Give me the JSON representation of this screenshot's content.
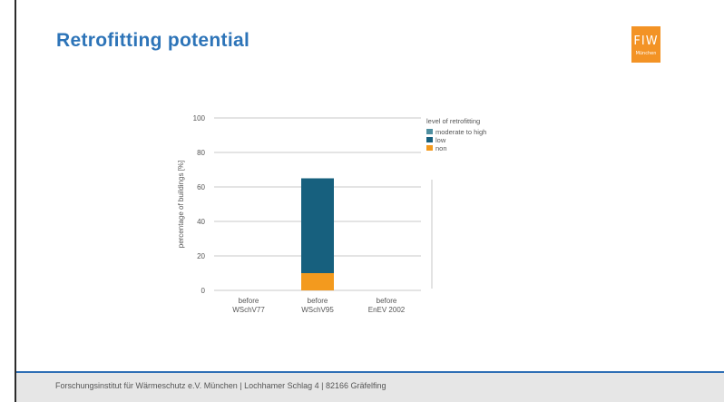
{
  "slide": {
    "title": "Retrofitting potential",
    "logo_main": "FIW",
    "logo_sub": "München",
    "footer": "Forschungsinstitut für Wärmeschutz e.V. München | Lochhamer Schlag 4 | 82166 Gräfelfing"
  },
  "colors": {
    "title": "#2d74b8",
    "accent": "#f39325",
    "moderate_to_high": "#4f8fa0",
    "low": "#17607e",
    "non": "#f39a1e"
  },
  "chart_data": {
    "type": "bar",
    "stacked": true,
    "categories": [
      [
        "before",
        "WSchV77"
      ],
      [
        "before",
        "WSchV95"
      ],
      [
        "before",
        "EnEV 2002"
      ]
    ],
    "series": [
      {
        "name": "non",
        "values": [
          0,
          10,
          0
        ]
      },
      {
        "name": "low",
        "values": [
          0,
          55,
          0
        ]
      },
      {
        "name": "moderate to high",
        "values": [
          0,
          0,
          0
        ]
      }
    ],
    "ylabel": "percentage of buildings [%]",
    "ylim": [
      0,
      100
    ],
    "yticks": [
      0,
      20,
      40,
      60,
      80,
      100
    ],
    "grid": true,
    "legend_title": "level of retrofitting",
    "legend_placement": "right"
  }
}
